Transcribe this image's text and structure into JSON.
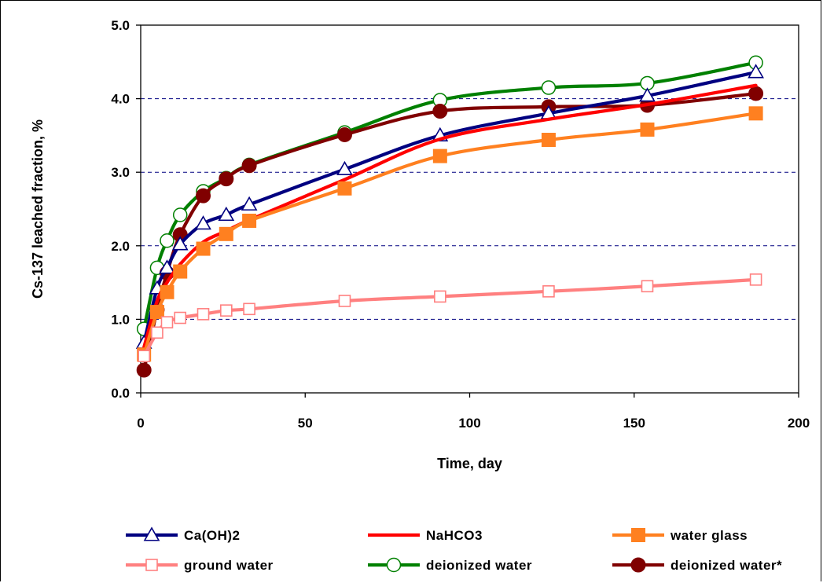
{
  "chart_data": {
    "type": "line",
    "xlabel": "Time, day",
    "ylabel": "Cs-137 leached fraction, %",
    "xlim": [
      0,
      200
    ],
    "ylim": [
      0,
      5
    ],
    "x_ticks": [
      0,
      50,
      100,
      150,
      200
    ],
    "x_tick_labels": [
      "0",
      "50",
      "100",
      "150",
      "200"
    ],
    "y_ticks": [
      0,
      1,
      2,
      3,
      4,
      5
    ],
    "y_tick_labels": [
      "0.0",
      "1.0",
      "2.0",
      "3.0",
      "4.0",
      "5.0"
    ],
    "grid": "horizontal dashed",
    "legend_position": "bottom",
    "series": [
      {
        "name": "Ca(OH)2",
        "color": "#000080",
        "marker": "triangle-open",
        "x": [
          1,
          5,
          8,
          12,
          19,
          26,
          33,
          62,
          91,
          124,
          154,
          187
        ],
        "y": [
          0.68,
          1.42,
          1.7,
          2.02,
          2.3,
          2.42,
          2.56,
          3.04,
          3.5,
          3.8,
          4.04,
          4.36
        ]
      },
      {
        "name": "NaHCO3",
        "color": "#ff0000",
        "marker": "none",
        "x": [
          1,
          5,
          8,
          12,
          19,
          26,
          33,
          62,
          91,
          124,
          154,
          187
        ],
        "y": [
          0.62,
          1.25,
          1.5,
          1.75,
          2.05,
          2.2,
          2.35,
          2.9,
          3.45,
          3.72,
          3.92,
          4.18
        ]
      },
      {
        "name": "water glass",
        "color": "#ff8020",
        "marker": "square-filled",
        "x": [
          1,
          5,
          8,
          12,
          19,
          26,
          33,
          62,
          91,
          124,
          154,
          187
        ],
        "y": [
          0.52,
          1.1,
          1.37,
          1.65,
          1.96,
          2.16,
          2.34,
          2.78,
          3.22,
          3.44,
          3.58,
          3.8
        ]
      },
      {
        "name": "ground water",
        "color": "#ff8080",
        "marker": "square-open",
        "x": [
          1,
          5,
          8,
          12,
          19,
          26,
          33,
          62,
          91,
          124,
          154,
          187
        ],
        "y": [
          0.5,
          0.82,
          0.96,
          1.02,
          1.07,
          1.12,
          1.14,
          1.25,
          1.31,
          1.38,
          1.45,
          1.54
        ]
      },
      {
        "name": "deionized water",
        "color": "#008000",
        "marker": "circle-open",
        "x": [
          1,
          5,
          8,
          12,
          19,
          26,
          33,
          62,
          91,
          124,
          154,
          187
        ],
        "y": [
          0.87,
          1.7,
          2.07,
          2.42,
          2.74,
          2.92,
          3.1,
          3.54,
          3.98,
          4.15,
          4.21,
          4.49
        ]
      },
      {
        "name": "deionized water*",
        "color": "#800000",
        "marker": "circle-filled",
        "x": [
          1,
          5,
          8,
          12,
          19,
          26,
          33,
          62,
          91,
          124,
          154,
          187
        ],
        "y": [
          0.31,
          1.13,
          1.63,
          2.15,
          2.68,
          2.91,
          3.09,
          3.51,
          3.83,
          3.89,
          3.91,
          4.07
        ]
      }
    ]
  }
}
